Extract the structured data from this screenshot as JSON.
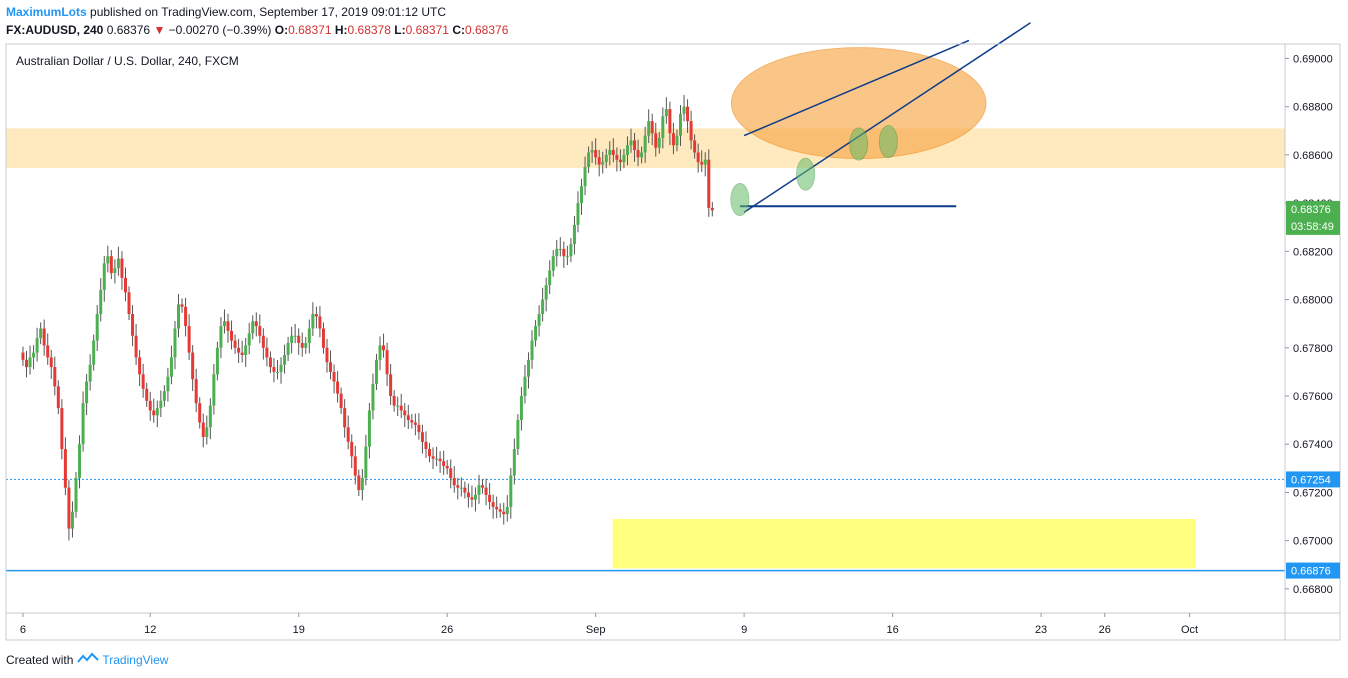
{
  "header": {
    "author": "MaximumLots",
    "published_text": "published on TradingView.com, September 17, 2019 09:01:12 UTC",
    "symbol": "FX:AUDUSD, 240",
    "price": "0.68376",
    "change_arrow": "▼",
    "change": "−0.00270 (−0.39%)",
    "o_label": "O:",
    "o_value": "0.68371",
    "h_label": "H:",
    "h_value": "0.68378",
    "l_label": "L:",
    "l_value": "0.68371",
    "c_label": "C:",
    "c_value": "0.68376"
  },
  "chart_title": "Australian Dollar / U.S. Dollar, 240, FXCM",
  "footer": {
    "created_with": "Created with",
    "brand": "TradingView"
  },
  "colors": {
    "up": "#4caf50",
    "down": "#e53935",
    "trend_line": "#0d3c8c",
    "support_line": "#2196f3",
    "resistance_zone": "#ffe0a3",
    "demand_zone": "#ffff80",
    "ellipse_fill": "#f7a84a"
  },
  "chart_data": {
    "type": "candlestick",
    "y_range": [
      0.667,
      0.6906
    ],
    "y_ticks": [
      "0.69000",
      "0.68800",
      "0.68600",
      "0.68400",
      "0.68200",
      "0.68000",
      "0.67800",
      "0.67600",
      "0.67400",
      "0.67200",
      "0.67000",
      "0.66800"
    ],
    "x_ticks": [
      {
        "label": "6",
        "day": 0
      },
      {
        "label": "12",
        "day": 6
      },
      {
        "label": "19",
        "day": 13
      },
      {
        "label": "26",
        "day": 20
      },
      {
        "label": "Sep",
        "day": 27
      },
      {
        "label": "9",
        "day": 34
      },
      {
        "label": "16",
        "day": 41
      },
      {
        "label": "23",
        "day": 48
      },
      {
        "label": "26",
        "day": 51
      },
      {
        "label": "Oct",
        "day": 55
      }
    ],
    "x_range_days": [
      -0.8,
      59.5
    ],
    "candles_per_day": 6,
    "price_labels": {
      "current": "0.68376",
      "countdown": "03:58:49",
      "dotted_level": "0.67254",
      "support_level": "0.66876"
    },
    "levels": {
      "dotted": 0.67254,
      "support": 0.66876,
      "neckline": 0.68387
    },
    "zones": {
      "resistance": [
        0.68546,
        0.6871
      ],
      "demand": {
        "day_start": 27.8,
        "day_end": 55.3,
        "low": 0.66885,
        "high": 0.6709
      }
    },
    "channel": {
      "lower": [
        [
          34.0,
          0.68362
        ],
        [
          47.5,
          0.69148
        ]
      ],
      "upper": [
        [
          34.0,
          0.6868
        ],
        [
          44.6,
          0.69075
        ]
      ]
    },
    "ellipse": {
      "center_day": 39.4,
      "center_price": 0.68815,
      "half_width_days": 6.0,
      "half_height_price": 0.0023
    },
    "markers": [
      {
        "day": 33.8,
        "price": 0.68415
      },
      {
        "day": 36.9,
        "price": 0.6852
      },
      {
        "day": 39.4,
        "price": 0.68645
      },
      {
        "day": 40.8,
        "price": 0.68655
      }
    ],
    "closes": [
      0.6775,
      0.6772,
      0.6776,
      0.6778,
      0.6784,
      0.6788,
      0.6781,
      0.6776,
      0.6772,
      0.6764,
      0.6755,
      0.6738,
      0.6722,
      0.6705,
      0.6712,
      0.6726,
      0.674,
      0.6757,
      0.6766,
      0.6773,
      0.6783,
      0.6794,
      0.6804,
      0.6815,
      0.6818,
      0.6811,
      0.6813,
      0.6817,
      0.6809,
      0.6803,
      0.6794,
      0.6785,
      0.6776,
      0.6769,
      0.6763,
      0.6758,
      0.6754,
      0.6752,
      0.6755,
      0.6758,
      0.6762,
      0.6768,
      0.6776,
      0.6788,
      0.6798,
      0.6797,
      0.6789,
      0.6778,
      0.6767,
      0.6757,
      0.6749,
      0.6743,
      0.6747,
      0.6756,
      0.6769,
      0.678,
      0.6789,
      0.6791,
      0.6787,
      0.6783,
      0.678,
      0.6778,
      0.6777,
      0.6781,
      0.6786,
      0.6791,
      0.6789,
      0.6785,
      0.678,
      0.6776,
      0.6772,
      0.677,
      0.677,
      0.6773,
      0.6777,
      0.6782,
      0.6785,
      0.6785,
      0.6782,
      0.678,
      0.6782,
      0.6788,
      0.6794,
      0.6793,
      0.6788,
      0.678,
      0.6774,
      0.677,
      0.6766,
      0.6761,
      0.6755,
      0.6747,
      0.6741,
      0.6735,
      0.6727,
      0.6721,
      0.6726,
      0.6739,
      0.6754,
      0.6765,
      0.6775,
      0.6781,
      0.6779,
      0.6769,
      0.676,
      0.6756,
      0.6756,
      0.6754,
      0.6752,
      0.675,
      0.6749,
      0.6748,
      0.6745,
      0.6741,
      0.6738,
      0.6735,
      0.6734,
      0.6734,
      0.6733,
      0.6731,
      0.673,
      0.6726,
      0.6723,
      0.6722,
      0.6722,
      0.672,
      0.6718,
      0.6717,
      0.6719,
      0.6723,
      0.6722,
      0.6719,
      0.6716,
      0.6714,
      0.6713,
      0.6712,
      0.6711,
      0.6714,
      0.6727,
      0.6738,
      0.675,
      0.676,
      0.6768,
      0.6775,
      0.6783,
      0.6789,
      0.6794,
      0.68,
      0.6806,
      0.6812,
      0.6818,
      0.6821,
      0.6821,
      0.6818,
      0.6818,
      0.6823,
      0.6831,
      0.684,
      0.6847,
      0.6855,
      0.6861,
      0.6862,
      0.6859,
      0.6856,
      0.6857,
      0.686,
      0.6862,
      0.686,
      0.6858,
      0.6857,
      0.686,
      0.6864,
      0.6866,
      0.6862,
      0.6859,
      0.6861,
      0.6868,
      0.6874,
      0.6869,
      0.6863,
      0.6867,
      0.6876,
      0.6879,
      0.6869,
      0.6864,
      0.6868,
      0.6877,
      0.688,
      0.6874,
      0.6866,
      0.6861,
      0.6857,
      0.6856,
      0.6858,
      0.6838,
      0.6837
    ]
  }
}
